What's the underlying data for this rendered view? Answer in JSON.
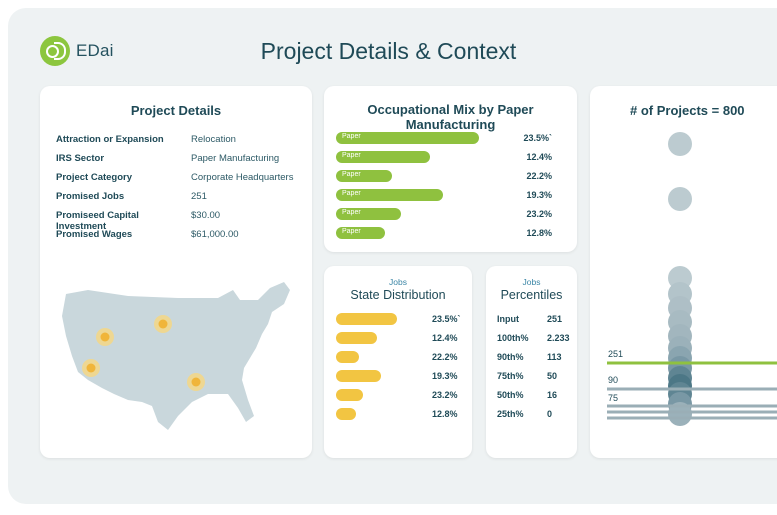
{
  "brand": {
    "name": "EDai"
  },
  "page_title": "Project Details & Context",
  "details": {
    "title": "Project Details",
    "rows": [
      {
        "key": "Attraction or Expansion",
        "value": "Relocation"
      },
      {
        "key": "IRS Sector",
        "value": "Paper Manufacturing"
      },
      {
        "key": "Project Category",
        "value": "Corporate Headquarters"
      },
      {
        "key": "Promised Jobs",
        "value": "251"
      },
      {
        "key": "Promiseed Capital Investment",
        "value": "$30.00"
      },
      {
        "key": "Promised Wages",
        "value": "$61,000.00"
      }
    ]
  },
  "occupational": {
    "title": "Occupational Mix by Paper Manufacturing",
    "bars": [
      {
        "label": "Paper",
        "value": "23.5%`",
        "fill": 0.84
      },
      {
        "label": "Paper",
        "value": "12.4%",
        "fill": 0.55
      },
      {
        "label": "Paper",
        "value": "22.2%",
        "fill": 0.33
      },
      {
        "label": "Paper",
        "value": "19.3%",
        "fill": 0.63
      },
      {
        "label": "Paper",
        "value": "23.2%",
        "fill": 0.38
      },
      {
        "label": "Paper",
        "value": "12.8%",
        "fill": 0.29
      }
    ]
  },
  "state": {
    "subtitle": "Jobs",
    "title": "State Distribution",
    "bars": [
      {
        "value": "23.5%`",
        "fill": 0.68
      },
      {
        "value": "12.4%",
        "fill": 0.45
      },
      {
        "value": "22.2%",
        "fill": 0.26
      },
      {
        "value": "19.3%",
        "fill": 0.5
      },
      {
        "value": "23.2%",
        "fill": 0.3
      },
      {
        "value": "12.8%",
        "fill": 0.22
      }
    ]
  },
  "percentiles": {
    "subtitle": "Jobs",
    "title": "Percentiles",
    "rows": [
      {
        "key": "Input",
        "value": "251"
      },
      {
        "key": "100th%",
        "value": "2.233"
      },
      {
        "key": "90th%",
        "value": "113"
      },
      {
        "key": "75th%",
        "value": "50"
      },
      {
        "key": "50th%",
        "value": "16"
      },
      {
        "key": "25th%",
        "value": "0"
      }
    ]
  },
  "projects": {
    "title": "# of Projects = 800",
    "line_labels": [
      "251",
      "90",
      "75"
    ]
  },
  "colors": {
    "green": "#8fc13f",
    "yellow": "#f2c542",
    "teal_dark": "#1f4a57",
    "map_fill": "#c9d7dc",
    "dot_gray": "#bccbd0"
  }
}
